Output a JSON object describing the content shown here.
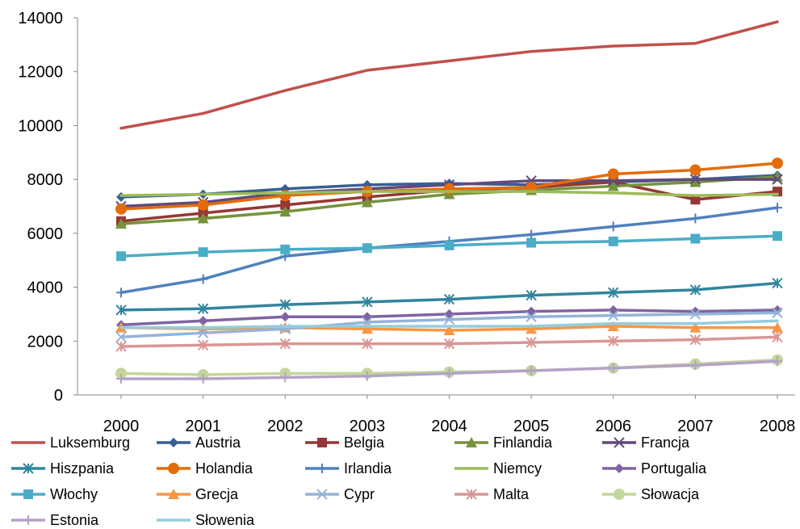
{
  "chart_data": {
    "type": "line",
    "title": "",
    "xlabel": "",
    "ylabel": "",
    "x": [
      "2000",
      "2001",
      "2002",
      "2003",
      "2004",
      "2005",
      "2006",
      "2007",
      "2008"
    ],
    "ylim": [
      0,
      14000
    ],
    "yticks": [
      "0",
      "2000",
      "4000",
      "6000",
      "8000",
      "10000",
      "12000",
      "14000"
    ],
    "grid": false,
    "legend_position": "bottom",
    "series": [
      {
        "name": "Luksemburg",
        "color": "#c0504d",
        "marker": "none",
        "values": [
          9900,
          10450,
          11300,
          12050,
          12400,
          12750,
          12950,
          13050,
          13850
        ]
      },
      {
        "name": "Austria",
        "color": "#366092",
        "marker": "diamond",
        "values": [
          7350,
          7450,
          7650,
          7800,
          7850,
          7800,
          7900,
          8000,
          8150
        ]
      },
      {
        "name": "Belgia",
        "color": "#953735",
        "marker": "square",
        "values": [
          6450,
          6750,
          7050,
          7350,
          7600,
          7700,
          7900,
          7250,
          7550
        ]
      },
      {
        "name": "Finlandia",
        "color": "#76923c",
        "marker": "triangle",
        "values": [
          6350,
          6550,
          6800,
          7150,
          7450,
          7600,
          7750,
          7900,
          8100
        ]
      },
      {
        "name": "Francja",
        "color": "#604a7b",
        "marker": "x",
        "values": [
          7000,
          7150,
          7500,
          7650,
          7800,
          7950,
          7950,
          8000,
          8000
        ]
      },
      {
        "name": "Hiszpania",
        "color": "#31859c",
        "marker": "star",
        "values": [
          3150,
          3200,
          3350,
          3450,
          3550,
          3700,
          3800,
          3900,
          4150
        ]
      },
      {
        "name": "Holandia",
        "color": "#e46c0a",
        "marker": "circle",
        "values": [
          6900,
          7050,
          7400,
          7550,
          7650,
          7700,
          8200,
          8350,
          8600
        ]
      },
      {
        "name": "Irlandia",
        "color": "#4f81bd",
        "marker": "plus",
        "values": [
          3800,
          4300,
          5150,
          5450,
          5700,
          5950,
          6250,
          6550,
          6950
        ]
      },
      {
        "name": "Niemcy",
        "color": "#9bbb59",
        "marker": "none",
        "values": [
          7400,
          7450,
          7500,
          7550,
          7550,
          7550,
          7500,
          7400,
          7450
        ]
      },
      {
        "name": "Portugalia",
        "color": "#8064a2",
        "marker": "diamond",
        "values": [
          2600,
          2750,
          2900,
          2900,
          3000,
          3100,
          3150,
          3100,
          3150
        ]
      },
      {
        "name": "Włochy",
        "color": "#4bacc6",
        "marker": "square",
        "values": [
          5150,
          5300,
          5400,
          5450,
          5550,
          5650,
          5700,
          5800,
          5900
        ]
      },
      {
        "name": "Grecja",
        "color": "#f79646",
        "marker": "triangle",
        "values": [
          2500,
          2450,
          2500,
          2450,
          2400,
          2450,
          2550,
          2500,
          2500
        ]
      },
      {
        "name": "Cypr",
        "color": "#95b3d7",
        "marker": "x",
        "values": [
          2150,
          2300,
          2450,
          2700,
          2800,
          2900,
          2950,
          3000,
          3050
        ]
      },
      {
        "name": "Malta",
        "color": "#d99694",
        "marker": "star",
        "values": [
          1800,
          1850,
          1900,
          1900,
          1900,
          1950,
          2000,
          2050,
          2150
        ]
      },
      {
        "name": "Słowacja",
        "color": "#c3d69b",
        "marker": "circle",
        "values": [
          800,
          750,
          800,
          800,
          850,
          900,
          1000,
          1150,
          1300
        ]
      },
      {
        "name": "Estonia",
        "color": "#b3a2c7",
        "marker": "plus",
        "values": [
          600,
          600,
          650,
          700,
          800,
          900,
          1000,
          1100,
          1250
        ]
      },
      {
        "name": "Słowenia",
        "color": "#93cddd",
        "marker": "none",
        "values": [
          2500,
          2500,
          2550,
          2550,
          2550,
          2550,
          2650,
          2650,
          2750
        ]
      }
    ]
  }
}
